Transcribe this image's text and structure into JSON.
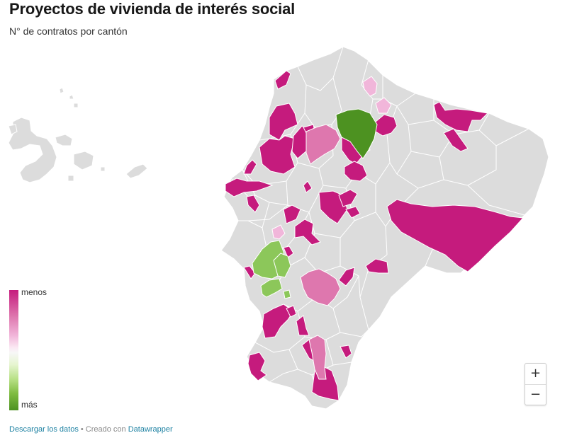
{
  "title": "Proyectos de vivienda de interés social",
  "subtitle": "N° de contratos por cantón",
  "legend": {
    "top_label": "menos",
    "bottom_label": "más"
  },
  "zoom": {
    "in": "+",
    "out": "−"
  },
  "footer": {
    "download": "Descargar los datos",
    "separator": " • Creado con ",
    "tool": "Datawrapper"
  },
  "colors": {
    "no_data": "#dcdcdc",
    "menos": "#c51b7d",
    "pink_light": "#f1b6da",
    "pink_mid": "#de77ae",
    "green_mid": "#8cc75a",
    "green_dark": "#4d9221",
    "link": "#1d81a2"
  }
}
